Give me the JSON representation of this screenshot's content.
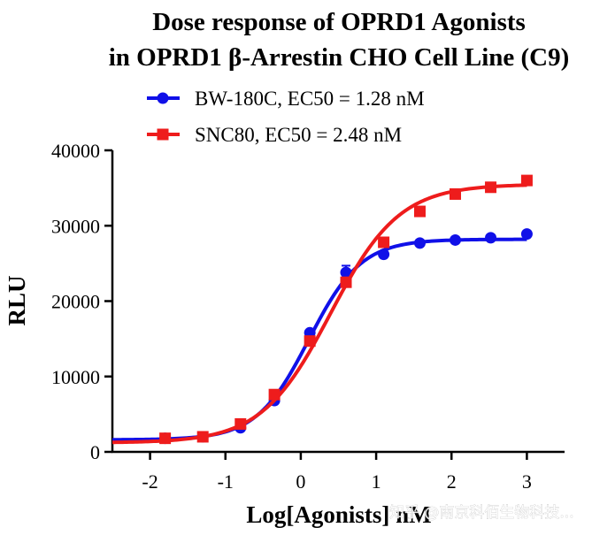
{
  "watermark": "知乎 @南京科佰生物科技...",
  "chart_data": {
    "type": "line",
    "title": [
      "Dose response of OPRD1 Agonists",
      "in OPRD1 β-Arrestin CHO Cell Line (C9)"
    ],
    "xlabel": "Log[Agonists] nM",
    "ylabel": "RLU",
    "xlim": [
      -2.5,
      3.5
    ],
    "ylim": [
      0,
      40000
    ],
    "xticks": [
      -2,
      -1,
      0,
      1,
      2,
      3
    ],
    "xtick_labels": [
      "-2",
      "-1",
      "0",
      "1",
      "2",
      "3"
    ],
    "yticks": [
      0,
      10000,
      20000,
      30000,
      40000
    ],
    "ytick_labels": [
      "0",
      "10000",
      "20000",
      "30000",
      "40000"
    ],
    "legend_position": "top-center",
    "series": [
      {
        "name": "BW-180C, EC50 = 1.28 nM",
        "color": "#1010e8",
        "marker": "circle",
        "x": [
          -1.8,
          -1.3,
          -0.8,
          -0.35,
          0.12,
          0.6,
          1.1,
          1.58,
          2.05,
          2.52,
          3.0
        ],
        "y": [
          1800,
          2000,
          3200,
          6800,
          15800,
          23800,
          26200,
          27700,
          28100,
          28400,
          28900
        ],
        "error": [
          0,
          0,
          0,
          0,
          0,
          900,
          0,
          0,
          0,
          0,
          0
        ],
        "fit": {
          "bottom": 1600,
          "top": 28200,
          "log_ec50": 0.107,
          "hill": 1.25
        }
      },
      {
        "name": "SNC80, EC50 = 2.48 nM",
        "color": "#ee1c1c",
        "marker": "square",
        "x": [
          -1.8,
          -1.3,
          -0.8,
          -0.35,
          0.12,
          0.6,
          1.1,
          1.58,
          2.05,
          2.52,
          3.0
        ],
        "y": [
          1800,
          2000,
          3700,
          7600,
          14700,
          22500,
          27800,
          31900,
          34200,
          35100,
          36000
        ],
        "error": [
          0,
          0,
          0,
          0,
          0,
          0,
          0,
          0,
          0,
          0,
          600
        ],
        "fit": {
          "bottom": 1200,
          "top": 35500,
          "log_ec50": 0.394,
          "hill": 0.95
        }
      }
    ]
  }
}
